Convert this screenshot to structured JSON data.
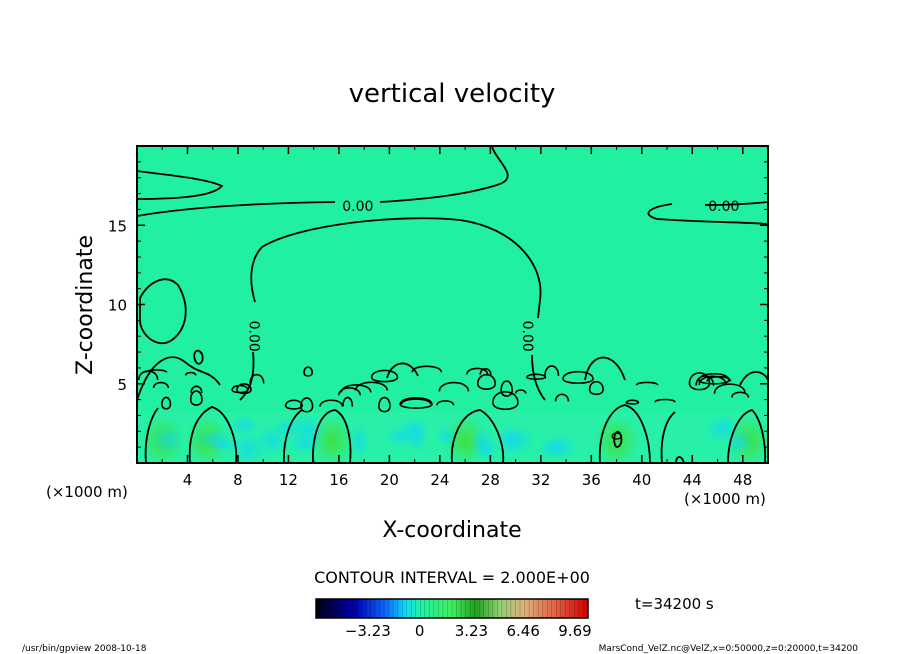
{
  "chart_data": {
    "type": "contour",
    "title": "vertical velocity",
    "xlabel": "X-coordinate",
    "ylabel": "Z-coordinate",
    "x_unit": "(×1000 m)",
    "y_unit": "(×1000 m)",
    "xlim": [
      0,
      50
    ],
    "ylim": [
      0,
      20
    ],
    "x_ticks": [
      4,
      8,
      12,
      16,
      20,
      24,
      28,
      32,
      36,
      40,
      44,
      48
    ],
    "y_ticks": [
      5,
      10,
      15
    ],
    "contour_labels": [
      {
        "text": "0.00",
        "x": 17.5,
        "y": 16.2,
        "rot": 0
      },
      {
        "text": "0.00",
        "x": 46.5,
        "y": 16.2,
        "rot": 0
      },
      {
        "text": "0.00",
        "x": 9.3,
        "y": 8.0,
        "rot": 90
      },
      {
        "text": "0.00",
        "x": 31.0,
        "y": 8.0,
        "rot": 90
      },
      {
        "text": "0",
        "x": 38.0,
        "y": 1.7,
        "rot": 90
      }
    ],
    "contour_interval_text": "CONTOUR INTERVAL = 2.000E+00",
    "time_text": "t=34200 s",
    "colorbar": {
      "ticks": [
        "−3.23",
        "0",
        "3.23",
        "6.46",
        "9.69"
      ],
      "tick_values": [
        -3.23,
        0,
        3.23,
        6.46,
        9.69
      ],
      "range": [
        -6.46,
        10.5
      ],
      "stops": [
        {
          "v": -6.46,
          "c": "#000010"
        },
        {
          "v": -4.0,
          "c": "#0000b0"
        },
        {
          "v": -2.0,
          "c": "#1070ff"
        },
        {
          "v": -0.8,
          "c": "#10e0f0"
        },
        {
          "v": 0.0,
          "c": "#20f0a8"
        },
        {
          "v": 2.0,
          "c": "#40f060"
        },
        {
          "v": 3.5,
          "c": "#20a020"
        },
        {
          "v": 5.0,
          "c": "#90d070"
        },
        {
          "v": 6.5,
          "c": "#e0b080"
        },
        {
          "v": 8.5,
          "c": "#e06040"
        },
        {
          "v": 10.5,
          "c": "#d00000"
        }
      ]
    },
    "background_color": "#20f0a0"
  },
  "footer": {
    "left": "/usr/bin/gpview 2008-10-18",
    "right": "MarsCond_VelZ.nc@VelZ,x=0:50000,z=0:20000,t=34200"
  }
}
